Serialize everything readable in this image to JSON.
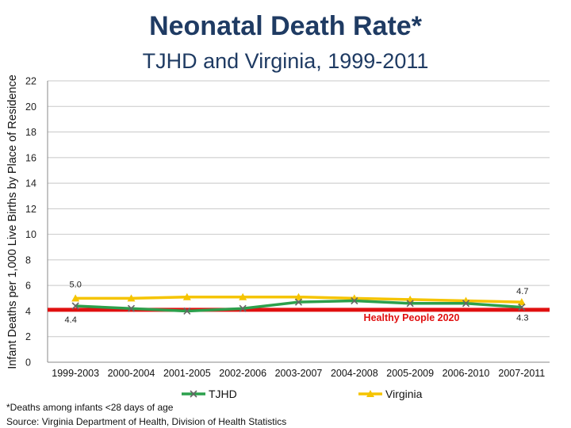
{
  "chart_data": {
    "type": "line",
    "title": "Neonatal Death Rate*",
    "subtitle": "TJHD and Virginia, 1999-2011",
    "ylabel": "Infant Deaths per 1,000 Live Births by Place of Residence",
    "xlabel": "",
    "ylim": [
      0,
      22
    ],
    "yticks": [
      0,
      2,
      4,
      6,
      8,
      10,
      12,
      14,
      16,
      18,
      20,
      22
    ],
    "categories": [
      "1999-2003",
      "2000-2004",
      "2001-2005",
      "2002-2006",
      "2003-2007",
      "2004-2008",
      "2005-2009",
      "2006-2010",
      "2007-2011"
    ],
    "series": [
      {
        "name": "TJHD",
        "values": [
          4.4,
          4.2,
          4.0,
          4.2,
          4.7,
          4.8,
          4.6,
          4.6,
          4.3
        ],
        "color": "#2ca04c",
        "marker": "x"
      },
      {
        "name": "Virginia",
        "values": [
          5.0,
          5.0,
          5.1,
          5.1,
          5.1,
          5.0,
          4.9,
          4.8,
          4.7
        ],
        "color": "#f5c400",
        "marker": "triangle"
      }
    ],
    "reference_line": {
      "label": "Healthy People 2020",
      "value": 4.1,
      "color": "#e01010"
    },
    "data_labels": [
      {
        "series": "Virginia",
        "index": 0,
        "text": "5.0"
      },
      {
        "series": "Virginia",
        "index": 8,
        "text": "4.7"
      },
      {
        "series": "TJHD",
        "index": 0,
        "text": "4.4"
      },
      {
        "series": "TJHD",
        "index": 8,
        "text": "4.3"
      }
    ],
    "legend_position": "bottom",
    "grid": true
  },
  "footnotes": {
    "definition": "*Deaths among infants <28 days of age",
    "source": "Source: Virginia Department of Health, Division of Health Statistics"
  }
}
